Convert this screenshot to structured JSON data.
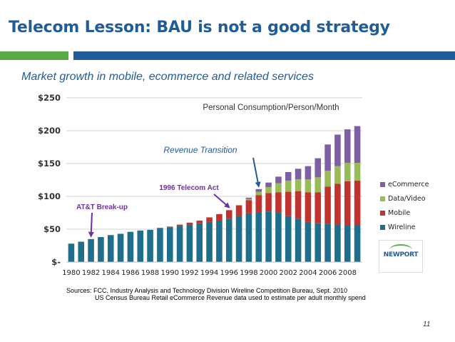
{
  "slide": {
    "title": "Telecom Lesson: BAU is not a good strategy",
    "subtitle": "Market growth in mobile, ecommerce and related services",
    "page_number": "11",
    "sources": {
      "line1": "Sources:  FCC, Industry Analysis and Technology Division Wireline Competition Bureau, Sept. 2010",
      "line2": "US Census Bureau Retail eCommerce Revenue data used to estimate per adult monthly spend"
    },
    "logo_text": "NEWPORT"
  },
  "colors": {
    "title": "#1f5c99",
    "accent_green": "#5aab47",
    "annotation_purple": "#7030a0",
    "annotation_blue": "#1f5c99",
    "arrow_purple": "#7030a0",
    "arrow_blue": "#1f5c99"
  },
  "chart_data": {
    "type": "bar",
    "stacked": true,
    "title": "Personal  Consumption/Person/Month",
    "xlabel": "",
    "ylabel": "",
    "ylim": [
      0,
      250
    ],
    "yticks": [
      0,
      50,
      100,
      150,
      200,
      250
    ],
    "ytick_labels": [
      "$-",
      "$50",
      "$100",
      "$150",
      "$200",
      "$250"
    ],
    "grid": true,
    "legend_position": "right",
    "legend_order": [
      "eCommerce",
      "Data/Video",
      "Mobile",
      "Wireline"
    ],
    "x_tick_labels": [
      "1980",
      "1982",
      "1984",
      "1986",
      "1988",
      "1990",
      "1992",
      "1994",
      "1996",
      "1998",
      "2000",
      "2002",
      "2004",
      "2006",
      "2008"
    ],
    "categories": [
      "1980",
      "1981",
      "1982",
      "1983",
      "1984",
      "1985",
      "1986",
      "1987",
      "1988",
      "1989",
      "1990",
      "1991",
      "1992",
      "1993",
      "1994",
      "1995",
      "1996",
      "1997",
      "1998",
      "1999",
      "2000",
      "2001",
      "2002",
      "2003",
      "2004",
      "2005",
      "2006",
      "2007",
      "2008",
      "2009"
    ],
    "series": [
      {
        "name": "Wireline",
        "color": "#1f6e8c",
        "values": [
          28,
          31,
          35,
          38,
          41,
          43,
          46,
          48,
          49,
          51,
          53,
          55,
          57,
          59,
          61,
          63,
          66,
          70,
          74,
          76,
          77,
          76,
          70,
          66,
          61,
          59,
          58,
          57,
          56,
          56
        ]
      },
      {
        "name": "Mobile",
        "color": "#c0332f",
        "values": [
          0,
          0,
          0,
          0,
          0,
          0,
          0,
          0,
          0,
          1,
          1,
          2,
          3,
          4,
          7,
          10,
          13,
          16,
          20,
          26,
          28,
          30,
          37,
          42,
          45,
          47,
          57,
          62,
          67,
          68
        ]
      },
      {
        "name": "Data/Video",
        "color": "#99bb55",
        "values": [
          0,
          0,
          0,
          0,
          0,
          0,
          0,
          0,
          0,
          0,
          0,
          0,
          0,
          0,
          0,
          0,
          0,
          1,
          2,
          5,
          9,
          14,
          17,
          18,
          20,
          23,
          24,
          27,
          28,
          27
        ]
      },
      {
        "name": "eCommerce",
        "color": "#7f5fa3",
        "values": [
          0,
          0,
          0,
          0,
          0,
          0,
          0,
          0,
          0,
          0,
          0,
          0,
          0,
          0,
          0,
          0,
          0,
          0,
          2,
          4,
          7,
          10,
          13,
          16,
          20,
          29,
          40,
          48,
          51,
          56
        ]
      }
    ],
    "annotations": [
      {
        "text": "Revenue Transition",
        "color_key": "annotation_blue",
        "target_category": "1999"
      },
      {
        "text": "1996 Telecom Act",
        "color_key": "annotation_purple",
        "target_category": "1996"
      },
      {
        "text": "AT&T Break-up",
        "color_key": "annotation_purple",
        "target_category": "1982"
      }
    ]
  }
}
